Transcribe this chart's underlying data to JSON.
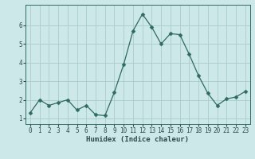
{
  "xlabel": "Humidex (Indice chaleur)",
  "x": [
    0,
    1,
    2,
    3,
    4,
    5,
    6,
    7,
    8,
    9,
    10,
    11,
    12,
    13,
    14,
    15,
    16,
    17,
    18,
    19,
    20,
    21,
    22,
    23
  ],
  "y": [
    1.3,
    2.0,
    1.7,
    1.85,
    2.0,
    1.45,
    1.7,
    1.2,
    1.15,
    2.4,
    3.9,
    5.7,
    6.6,
    5.9,
    5.0,
    5.55,
    5.5,
    4.45,
    3.3,
    2.35,
    1.7,
    2.05,
    2.15,
    2.45
  ],
  "line_color": "#2e6b5e",
  "marker": "D",
  "marker_size": 2.5,
  "bg_color": "#cce8e8",
  "grid_color": "#aacccc",
  "ylim": [
    0.7,
    7.1
  ],
  "yticks": [
    1,
    2,
    3,
    4,
    5,
    6
  ],
  "xlim": [
    -0.5,
    23.5
  ],
  "axis_fontsize": 6.5,
  "tick_fontsize": 5.5
}
